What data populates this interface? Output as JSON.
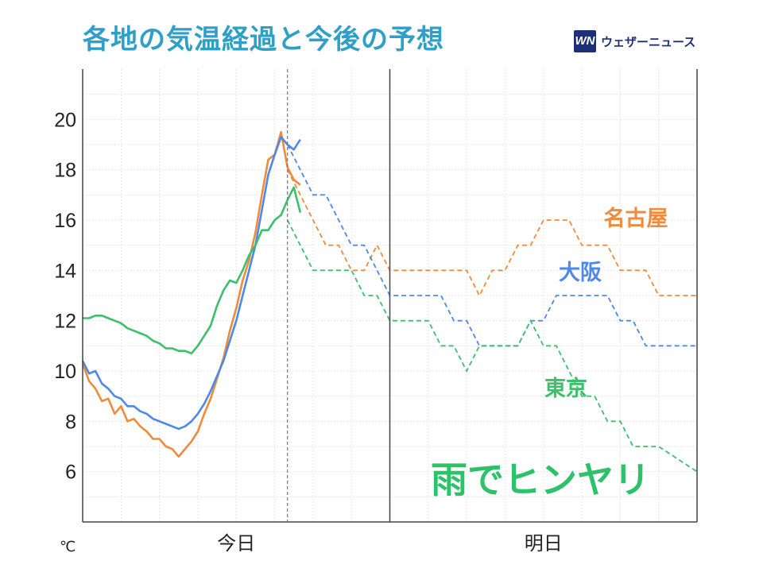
{
  "title": "各地の気温経過と今後の予想",
  "brand": {
    "logo_text": "WN",
    "name": "ウェザーニュース"
  },
  "chart_data": {
    "type": "line",
    "unit": "℃",
    "categories": [
      "今日",
      "明日"
    ],
    "ylim": [
      4,
      22
    ],
    "yticks": [
      6,
      8,
      10,
      12,
      14,
      16,
      18,
      20
    ],
    "xlim": [
      0,
      48
    ],
    "now_hour": 16,
    "annotation": {
      "text": "雨でヒンヤリ",
      "color": "#2dc16a"
    },
    "series": [
      {
        "name": "名古屋",
        "color": "#f08a3c",
        "observed": [
          [
            0,
            10.3
          ],
          [
            0.5,
            9.6
          ],
          [
            1,
            9.3
          ],
          [
            1.5,
            8.8
          ],
          [
            2,
            8.9
          ],
          [
            2.5,
            8.3
          ],
          [
            3,
            8.6
          ],
          [
            3.5,
            8.0
          ],
          [
            4,
            8.1
          ],
          [
            4.5,
            7.8
          ],
          [
            5,
            7.6
          ],
          [
            5.5,
            7.3
          ],
          [
            6,
            7.3
          ],
          [
            6.5,
            7.0
          ],
          [
            7,
            6.9
          ],
          [
            7.5,
            6.6
          ],
          [
            8,
            6.9
          ],
          [
            8.5,
            7.2
          ],
          [
            9,
            7.6
          ],
          [
            9.5,
            8.3
          ],
          [
            10,
            8.9
          ],
          [
            10.5,
            9.7
          ],
          [
            11,
            10.5
          ],
          [
            11.5,
            11.6
          ],
          [
            12,
            12.5
          ],
          [
            12.5,
            13.6
          ],
          [
            13,
            14.4
          ],
          [
            13.5,
            15.5
          ],
          [
            14,
            17.0
          ],
          [
            14.5,
            18.4
          ],
          [
            15,
            18.6
          ],
          [
            15.5,
            19.5
          ],
          [
            16,
            18.1
          ],
          [
            16.5,
            17.6
          ],
          [
            17,
            17.4
          ]
        ],
        "forecast": [
          [
            16,
            18.0
          ],
          [
            17,
            17.0
          ],
          [
            18,
            16.0
          ],
          [
            19,
            15.0
          ],
          [
            20,
            15.0
          ],
          [
            21,
            14.0
          ],
          [
            22,
            14.0
          ],
          [
            23,
            15.0
          ],
          [
            24,
            14.0
          ],
          [
            30,
            14.0
          ],
          [
            31,
            13.0
          ],
          [
            32,
            14.0
          ],
          [
            33,
            14.0
          ],
          [
            34,
            15.0
          ],
          [
            35,
            15.0
          ],
          [
            36,
            16.0
          ],
          [
            38,
            16.0
          ],
          [
            39,
            15.0
          ],
          [
            41,
            15.0
          ],
          [
            42,
            14.0
          ],
          [
            44,
            14.0
          ],
          [
            45,
            13.0
          ],
          [
            48,
            13.0
          ]
        ]
      },
      {
        "name": "大阪",
        "color": "#4e88e8",
        "observed": [
          [
            0,
            10.4
          ],
          [
            0.5,
            9.9
          ],
          [
            1,
            10.0
          ],
          [
            1.5,
            9.5
          ],
          [
            2,
            9.3
          ],
          [
            2.5,
            9.0
          ],
          [
            3,
            8.9
          ],
          [
            3.5,
            8.6
          ],
          [
            4,
            8.6
          ],
          [
            4.5,
            8.4
          ],
          [
            5,
            8.3
          ],
          [
            5.5,
            8.1
          ],
          [
            6,
            8.0
          ],
          [
            6.5,
            7.9
          ],
          [
            7,
            7.8
          ],
          [
            7.5,
            7.7
          ],
          [
            8,
            7.8
          ],
          [
            8.5,
            8.0
          ],
          [
            9,
            8.3
          ],
          [
            9.5,
            8.7
          ],
          [
            10,
            9.2
          ],
          [
            10.5,
            9.8
          ],
          [
            11,
            10.4
          ],
          [
            11.5,
            11.2
          ],
          [
            12,
            12.0
          ],
          [
            12.5,
            13.0
          ],
          [
            13,
            14.0
          ],
          [
            13.5,
            15.0
          ],
          [
            14,
            16.4
          ],
          [
            14.5,
            17.8
          ],
          [
            15,
            18.6
          ],
          [
            15.5,
            19.3
          ],
          [
            16,
            19.0
          ],
          [
            16.5,
            18.8
          ],
          [
            17,
            19.2
          ]
        ],
        "forecast": [
          [
            16,
            19.0
          ],
          [
            17,
            18.0
          ],
          [
            18,
            17.0
          ],
          [
            19,
            17.0
          ],
          [
            20,
            16.0
          ],
          [
            21,
            15.0
          ],
          [
            22,
            15.0
          ],
          [
            23,
            14.0
          ],
          [
            24,
            13.0
          ],
          [
            28,
            13.0
          ],
          [
            29,
            12.0
          ],
          [
            30,
            12.0
          ],
          [
            31,
            11.0
          ],
          [
            34,
            11.0
          ],
          [
            35,
            12.0
          ],
          [
            36,
            12.0
          ],
          [
            37,
            13.0
          ],
          [
            41,
            13.0
          ],
          [
            42,
            12.0
          ],
          [
            43,
            12.0
          ],
          [
            44,
            11.0
          ],
          [
            48,
            11.0
          ]
        ]
      },
      {
        "name": "東京",
        "color": "#3cc06c",
        "observed": [
          [
            0,
            12.1
          ],
          [
            0.5,
            12.1
          ],
          [
            1,
            12.2
          ],
          [
            1.5,
            12.2
          ],
          [
            2,
            12.1
          ],
          [
            2.5,
            12.0
          ],
          [
            3,
            11.9
          ],
          [
            3.5,
            11.7
          ],
          [
            4,
            11.6
          ],
          [
            4.5,
            11.5
          ],
          [
            5,
            11.4
          ],
          [
            5.5,
            11.2
          ],
          [
            6,
            11.1
          ],
          [
            6.5,
            10.9
          ],
          [
            7,
            10.9
          ],
          [
            7.5,
            10.8
          ],
          [
            8,
            10.8
          ],
          [
            8.5,
            10.7
          ],
          [
            9,
            11.0
          ],
          [
            9.5,
            11.4
          ],
          [
            10,
            11.8
          ],
          [
            10.5,
            12.6
          ],
          [
            11,
            13.2
          ],
          [
            11.5,
            13.6
          ],
          [
            12,
            13.5
          ],
          [
            12.5,
            14.0
          ],
          [
            13,
            14.6
          ],
          [
            13.5,
            15.0
          ],
          [
            14,
            15.6
          ],
          [
            14.5,
            15.6
          ],
          [
            15,
            16.0
          ],
          [
            15.5,
            16.2
          ],
          [
            16,
            16.8
          ],
          [
            16.5,
            17.3
          ],
          [
            17,
            16.3
          ]
        ],
        "forecast": [
          [
            16,
            16.0
          ],
          [
            17,
            15.0
          ],
          [
            18,
            14.0
          ],
          [
            21,
            14.0
          ],
          [
            22,
            13.0
          ],
          [
            23,
            13.0
          ],
          [
            24,
            12.0
          ],
          [
            27,
            12.0
          ],
          [
            28,
            11.0
          ],
          [
            29,
            11.0
          ],
          [
            30,
            10.0
          ],
          [
            31,
            11.0
          ],
          [
            34,
            11.0
          ],
          [
            35,
            12.0
          ],
          [
            36,
            11.0
          ],
          [
            37,
            11.0
          ],
          [
            38,
            10.0
          ],
          [
            39,
            9.0
          ],
          [
            40,
            9.0
          ],
          [
            41,
            8.0
          ],
          [
            42,
            8.0
          ],
          [
            43,
            7.0
          ],
          [
            45,
            7.0
          ],
          [
            48,
            6.0
          ]
        ]
      }
    ]
  }
}
